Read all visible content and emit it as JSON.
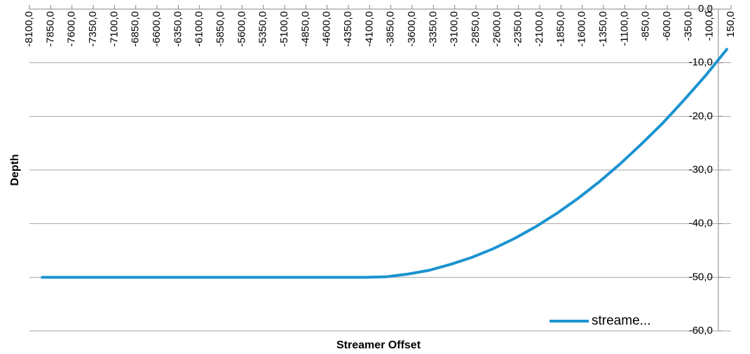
{
  "chart_data": {
    "type": "line",
    "xlabel": "Streamer Offset",
    "ylabel": "Depth",
    "x": [
      -7950,
      -4150,
      -3900,
      -3650,
      -3400,
      -3150,
      -2900,
      -2650,
      -2400,
      -2150,
      -1900,
      -1650,
      -1400,
      -1150,
      -900,
      -650,
      -400,
      -150,
      100
    ],
    "series": [
      {
        "name": "streame...",
        "color": "#1b93d0",
        "values": [
          -50,
          -50,
          -49.9,
          -49.4,
          -48.7,
          -47.6,
          -46.3,
          -44.7,
          -42.8,
          -40.6,
          -38.1,
          -35.3,
          -32.2,
          -28.8,
          -25.1,
          -21.2,
          -16.9,
          -12.4,
          -7.5
        ]
      }
    ],
    "xlim": [
      -8100,
      150
    ],
    "xticks": [
      {
        "value": -8100,
        "label": "-8100,0"
      },
      {
        "value": -7850,
        "label": "-7850,0"
      },
      {
        "value": -7600,
        "label": "-7600,0"
      },
      {
        "value": -7350,
        "label": "-7350,0"
      },
      {
        "value": -7100,
        "label": "-7100,0"
      },
      {
        "value": -6850,
        "label": "-6850,0"
      },
      {
        "value": -6600,
        "label": "-6600,0"
      },
      {
        "value": -6350,
        "label": "-6350,0"
      },
      {
        "value": -6100,
        "label": "-6100,0"
      },
      {
        "value": -5850,
        "label": "-5850,0"
      },
      {
        "value": -5600,
        "label": "-5600,0"
      },
      {
        "value": -5350,
        "label": "-5350,0"
      },
      {
        "value": -5100,
        "label": "-5100,0"
      },
      {
        "value": -4850,
        "label": "-4850,0"
      },
      {
        "value": -4600,
        "label": "-4600,0"
      },
      {
        "value": -4350,
        "label": "-4350,0"
      },
      {
        "value": -4100,
        "label": "-4100,0"
      },
      {
        "value": -3850,
        "label": "-3850,0"
      },
      {
        "value": -3600,
        "label": "-3600,0"
      },
      {
        "value": -3350,
        "label": "-3350,0"
      },
      {
        "value": -3100,
        "label": "-3100,0"
      },
      {
        "value": -2850,
        "label": "-2850,0"
      },
      {
        "value": -2600,
        "label": "-2600,0"
      },
      {
        "value": -2350,
        "label": "-2350,0"
      },
      {
        "value": -2100,
        "label": "-2100,0"
      },
      {
        "value": -1850,
        "label": "-1850,0"
      },
      {
        "value": -1600,
        "label": "-1600,0"
      },
      {
        "value": -1350,
        "label": "-1350,0"
      },
      {
        "value": -1100,
        "label": "-1100,0"
      },
      {
        "value": -850,
        "label": "-850,0"
      },
      {
        "value": -600,
        "label": "-600,0"
      },
      {
        "value": -350,
        "label": "-350,0"
      },
      {
        "value": -100,
        "label": "-100,0"
      },
      {
        "value": 150,
        "label": "150,0"
      }
    ],
    "ylim": [
      -60,
      0
    ],
    "yticks": [
      {
        "value": 0,
        "label": "0,0"
      },
      {
        "value": -10,
        "label": "-10,0"
      },
      {
        "value": -20,
        "label": "-20,0"
      },
      {
        "value": -30,
        "label": "-30,0"
      },
      {
        "value": -40,
        "label": "-40,0"
      },
      {
        "value": -50,
        "label": "-50,0"
      },
      {
        "value": -60,
        "label": "-60,0"
      }
    ],
    "grid": true,
    "legend": "lower right"
  }
}
